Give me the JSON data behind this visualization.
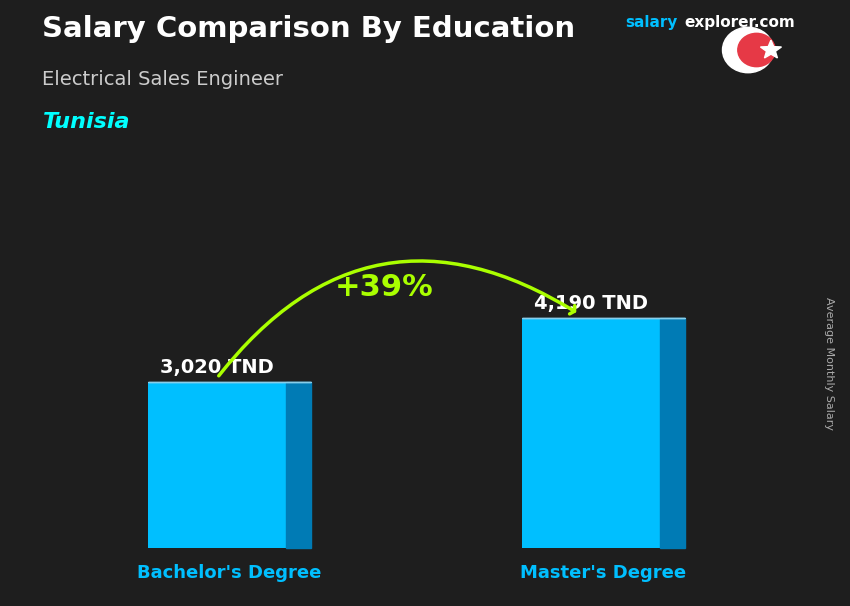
{
  "title": "Salary Comparison By Education",
  "subtitle": "Electrical Sales Engineer",
  "country": "Tunisia",
  "site_name": "salary",
  "site_ext": "explorer.com",
  "ylabel": "Average Monthly Salary",
  "categories": [
    "Bachelor's Degree",
    "Master's Degree"
  ],
  "values": [
    3020,
    4190
  ],
  "labels": [
    "3,020 TND",
    "4,190 TND"
  ],
  "pct_change": "+39%",
  "bar_color_face": "#00BFFF",
  "bar_color_right": "#007BB5",
  "bar_color_top": "#87CEEB",
  "bg_color": "#1e1e1e",
  "title_color": "#ffffff",
  "subtitle_color": "#cccccc",
  "country_color": "#00FFFF",
  "label_color": "#ffffff",
  "xlabel_color": "#00BFFF",
  "pct_color": "#aaff00",
  "arrow_color": "#aaff00",
  "site_color1": "#00BFFF",
  "site_color2": "#ffffff",
  "flag_bg": "#e63946",
  "ylabel_color": "#aaaaaa",
  "figsize": [
    8.5,
    6.06
  ],
  "dpi": 100
}
